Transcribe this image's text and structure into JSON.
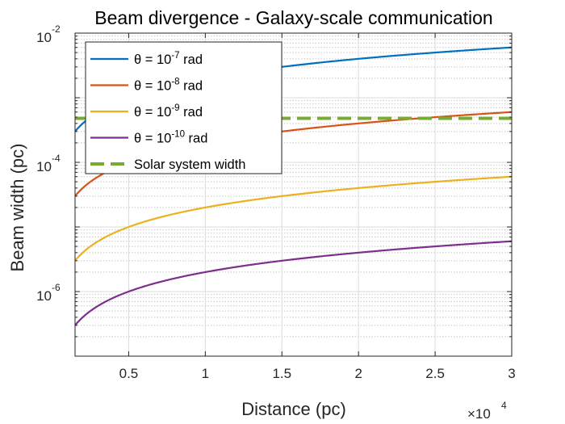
{
  "chart_data": {
    "type": "line",
    "title": "Beam divergence - Galaxy-scale communication",
    "xlabel": "Distance (pc)",
    "ylabel": "Beam width (pc)",
    "xscale": "linear",
    "yscale": "log",
    "xlim": [
      1500,
      30000
    ],
    "ylim": [
      1e-07,
      0.01
    ],
    "x_ticks": [
      5000,
      10000,
      15000,
      20000,
      25000,
      30000
    ],
    "x_tick_labels": [
      "0.5",
      "1",
      "1.5",
      "2",
      "2.5",
      "3"
    ],
    "x_exponent_label": "×10",
    "x_exponent_power": "4",
    "y_ticks": [
      1e-06,
      0.0001,
      0.01
    ],
    "y_tick_labels": [
      {
        "base": "10",
        "exp": "-6"
      },
      {
        "base": "10",
        "exp": "-4"
      },
      {
        "base": "10",
        "exp": "-2"
      }
    ],
    "grid": true,
    "minor_grid": true,
    "legend_position": "top-left",
    "series": [
      {
        "name": "theta = 10^-7 rad",
        "legend_prefix": "θ = 10",
        "legend_exp": "-7",
        "legend_suffix": " rad",
        "kind": "linear",
        "slope": 2e-07,
        "x": [
          1500,
          30000
        ],
        "values": [
          0.0003,
          0.006
        ],
        "color": "#0072BD",
        "dash": "solid"
      },
      {
        "name": "theta = 10^-8 rad",
        "legend_prefix": "θ = 10",
        "legend_exp": "-8",
        "legend_suffix": " rad",
        "kind": "linear",
        "slope": 2e-08,
        "x": [
          1500,
          30000
        ],
        "values": [
          3e-05,
          0.0006
        ],
        "color": "#D95319",
        "dash": "solid"
      },
      {
        "name": "theta = 10^-9 rad",
        "legend_prefix": "θ = 10",
        "legend_exp": "-9",
        "legend_suffix": " rad",
        "kind": "linear",
        "slope": 2e-09,
        "x": [
          1500,
          30000
        ],
        "values": [
          3e-06,
          6e-05
        ],
        "color": "#EDB120",
        "dash": "solid"
      },
      {
        "name": "theta = 10^-10 rad",
        "legend_prefix": "θ = 10",
        "legend_exp": "-10",
        "legend_suffix": " rad",
        "kind": "linear",
        "slope": 2e-10,
        "x": [
          1500,
          30000
        ],
        "values": [
          3e-07,
          6e-06
        ],
        "color": "#7E2F8E",
        "dash": "solid"
      },
      {
        "name": "Solar system width",
        "legend_prefix": "Solar system width",
        "legend_exp": "",
        "legend_suffix": "",
        "kind": "constant",
        "x": [
          1500,
          30000
        ],
        "values": [
          0.00048,
          0.00048
        ],
        "color": "#77AC30",
        "dash": "dashed"
      }
    ]
  }
}
